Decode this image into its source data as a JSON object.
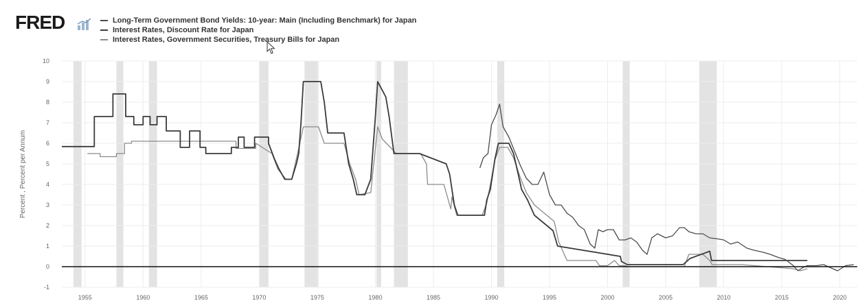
{
  "header": {
    "brand": "FRED",
    "brand_icon": "bar-chart-icon"
  },
  "colors": {
    "bond": "#4a4a4a",
    "discount": "#3a3a3a",
    "tbill": "#8a8a8a",
    "recession": "#e3e3e3",
    "grid": "#ececec",
    "zero_line": "#111111"
  },
  "chart_data": {
    "type": "line",
    "title": "",
    "xlabel": "",
    "ylabel": "Percent , Percent per Annum",
    "xlim": [
      1953,
      2021.5
    ],
    "ylim": [
      -1,
      10
    ],
    "y_ticks": [
      "-1",
      "0",
      "1",
      "2",
      "3",
      "4",
      "5",
      "6",
      "7",
      "8",
      "9",
      "10"
    ],
    "x_ticks": [
      "1955",
      "1960",
      "1965",
      "1970",
      "1975",
      "1980",
      "1985",
      "1990",
      "1995",
      "2000",
      "2005",
      "2010",
      "2015",
      "2020"
    ],
    "grid": true,
    "legend_position": "top-left",
    "recessions": [
      [
        1954.0,
        1954.7
      ],
      [
        1957.7,
        1958.3
      ],
      [
        1960.5,
        1961.2
      ],
      [
        1970.0,
        1970.8
      ],
      [
        1973.9,
        1975.1
      ],
      [
        1980.1,
        1980.5
      ],
      [
        1981.6,
        1982.8
      ],
      [
        1990.5,
        1991.1
      ],
      [
        2001.3,
        2001.9
      ],
      [
        2007.9,
        2009.4
      ]
    ],
    "series": [
      {
        "name": "Long-Term Government Bond Yields: 10-year: Main (Including Benchmark) for Japan",
        "x": [
          1989.0,
          1989.3,
          1989.7,
          1990.0,
          1990.4,
          1990.7,
          1991.0,
          1991.5,
          1992.0,
          1992.5,
          1993.0,
          1993.5,
          1994.0,
          1994.5,
          1995.0,
          1995.5,
          1996.0,
          1996.5,
          1997.0,
          1997.5,
          1998.0,
          1998.5,
          1998.9,
          1999.2,
          1999.6,
          2000.0,
          2000.5,
          2001.0,
          2001.5,
          2002.0,
          2002.5,
          2003.0,
          2003.4,
          2003.8,
          2004.3,
          2005.0,
          2005.6,
          2006.2,
          2006.6,
          2007.0,
          2007.6,
          2008.2,
          2008.8,
          2009.5,
          2010.0,
          2010.6,
          2011.2,
          2012.0,
          2012.6,
          2013.4,
          2014.0,
          2014.7,
          2015.3,
          2016.0,
          2016.4,
          2016.8,
          2017.2,
          2018.0,
          2018.6,
          2019.2,
          2019.8,
          2020.5,
          2021.2
        ],
        "y": [
          4.8,
          5.3,
          5.5,
          6.9,
          7.4,
          7.9,
          6.8,
          6.3,
          5.6,
          4.9,
          4.3,
          4.0,
          4.0,
          4.6,
          3.5,
          3.0,
          3.0,
          2.6,
          2.4,
          2.0,
          1.8,
          1.1,
          0.9,
          1.8,
          1.7,
          1.8,
          1.8,
          1.3,
          1.3,
          1.4,
          1.2,
          0.8,
          0.6,
          1.4,
          1.6,
          1.4,
          1.5,
          1.9,
          1.9,
          1.7,
          1.6,
          1.6,
          1.4,
          1.35,
          1.3,
          1.1,
          1.2,
          0.9,
          0.8,
          0.7,
          0.6,
          0.45,
          0.35,
          0.05,
          -0.2,
          -0.05,
          0.05,
          0.05,
          0.1,
          -0.05,
          -0.2,
          0.05,
          0.1
        ]
      },
      {
        "name": "Interest Rates, Discount Rate for Japan",
        "x": [
          1953.0,
          1955.8,
          1955.8,
          1957.4,
          1957.4,
          1958.5,
          1958.5,
          1959.2,
          1959.2,
          1960.0,
          1960.0,
          1960.6,
          1960.6,
          1961.2,
          1961.2,
          1962.0,
          1962.0,
          1963.2,
          1963.2,
          1964.0,
          1964.0,
          1964.9,
          1964.9,
          1965.4,
          1965.4,
          1967.6,
          1967.6,
          1968.2,
          1968.2,
          1968.7,
          1968.7,
          1969.6,
          1969.6,
          1970.8,
          1970.8,
          1971.3,
          1971.7,
          1972.2,
          1972.8,
          1973.2,
          1973.4,
          1973.6,
          1973.8,
          1973.9,
          1975.3,
          1975.6,
          1975.9,
          1977.3,
          1977.7,
          1978.1,
          1978.4,
          1979.1,
          1979.6,
          1980.0,
          1980.2,
          1980.9,
          1981.2,
          1981.6,
          1983.8,
          1986.1,
          1986.4,
          1986.8,
          1987.1,
          1989.4,
          1989.6,
          1989.9,
          1990.3,
          1990.6,
          1991.5,
          1991.9,
          1992.3,
          1992.6,
          1993.1,
          1993.7,
          1995.3,
          1995.7,
          2001.1,
          2001.2,
          2001.7,
          2006.5,
          2007.1,
          2008.8,
          2008.95,
          2017.2
        ],
        "y": [
          5.84,
          5.84,
          7.3,
          7.3,
          8.4,
          8.4,
          7.3,
          7.3,
          6.9,
          6.9,
          7.3,
          7.3,
          6.9,
          6.9,
          7.3,
          7.3,
          6.6,
          6.6,
          5.8,
          5.8,
          6.6,
          6.6,
          5.8,
          5.8,
          5.5,
          5.5,
          5.8,
          5.8,
          6.3,
          6.3,
          5.8,
          5.8,
          6.3,
          6.3,
          6.0,
          5.25,
          4.75,
          4.25,
          4.25,
          5.0,
          5.5,
          7.0,
          9.0,
          9.0,
          9.0,
          8.0,
          6.5,
          6.5,
          5.0,
          4.25,
          3.5,
          3.5,
          4.25,
          7.25,
          9.0,
          8.25,
          7.25,
          5.5,
          5.5,
          5.0,
          4.5,
          3.0,
          2.5,
          2.5,
          3.25,
          3.75,
          5.25,
          6.0,
          6.0,
          5.5,
          4.5,
          3.75,
          3.25,
          2.5,
          1.75,
          1.0,
          0.5,
          0.25,
          0.1,
          0.1,
          0.4,
          0.75,
          0.3,
          0.3
        ]
      },
      {
        "name": "Interest Rates, Government Securities, Treasury Bills for Japan",
        "x": [
          1955.2,
          1956.3,
          1956.3,
          1957.7,
          1957.7,
          1958.4,
          1958.4,
          1959.0,
          1959.0,
          1968.0,
          1968.0,
          1969.7,
          1969.7,
          1971.1,
          1971.6,
          1972.3,
          1972.8,
          1973.3,
          1973.8,
          1975.1,
          1975.6,
          1977.3,
          1977.8,
          1978.3,
          1978.6,
          1979.6,
          1980.2,
          1980.6,
          1981.3,
          1981.8,
          1983.9,
          1984.4,
          1984.5,
          1985.9,
          1986.1,
          1986.5,
          1986.6,
          1987.0,
          1989.2,
          1989.6,
          1990.3,
          1990.7,
          1991.4,
          1991.9,
          1992.5,
          1993.0,
          1993.7,
          1995.4,
          1995.8,
          1996.5,
          1999.0,
          1999.3,
          2000.0,
          2000.6,
          2001.0,
          2001.5,
          2001.8,
          2006.6,
          2007.0,
          2008.2,
          2008.8,
          2009.0,
          2011.5,
          2016.0,
          2016.6,
          2017.2
        ],
        "y": [
          5.5,
          5.5,
          5.35,
          5.35,
          5.5,
          5.5,
          6.0,
          6.0,
          6.1,
          6.1,
          5.75,
          5.75,
          6.0,
          5.5,
          4.75,
          4.25,
          4.25,
          5.5,
          6.8,
          6.8,
          6.0,
          6.0,
          5.0,
          4.25,
          3.5,
          3.6,
          6.8,
          6.2,
          5.8,
          5.5,
          5.5,
          5.0,
          4.0,
          4.0,
          3.6,
          2.8,
          3.4,
          2.5,
          2.5,
          3.1,
          5.2,
          5.8,
          5.8,
          5.3,
          4.3,
          3.6,
          3.0,
          2.2,
          1.2,
          0.3,
          0.3,
          0.05,
          0.05,
          0.3,
          0.05,
          0.05,
          0.0,
          0.0,
          0.6,
          0.6,
          0.3,
          0.1,
          0.1,
          -0.1,
          -0.2,
          -0.1
        ]
      }
    ]
  }
}
